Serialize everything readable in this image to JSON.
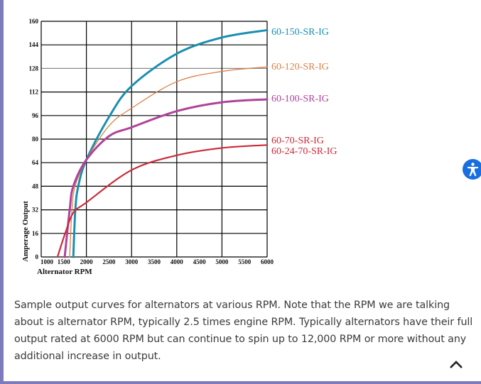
{
  "chart_data": {
    "type": "line",
    "xlabel": "Alternator RPM",
    "ylabel": "Amperage Output",
    "xlim": [
      1000,
      6000
    ],
    "ylim": [
      0,
      160
    ],
    "x_ticks": [
      "1000",
      "1500",
      "2000",
      "2500",
      "3000",
      "3500",
      "4000",
      "4500",
      "5000",
      "5500",
      "6000"
    ],
    "y_ticks": [
      "0",
      "16",
      "32",
      "48",
      "64",
      "80",
      "96",
      "112",
      "128",
      "144",
      "160"
    ],
    "grid": true,
    "legend_placement": "right, labels at line ends",
    "series": [
      {
        "name": "60-150-SR-IG",
        "color": "#1a8fb0",
        "width": 3,
        "x": [
          1710,
          1755,
          1820,
          2000,
          2500,
          3000,
          4000,
          5000,
          6000
        ],
        "y": [
          0,
          32,
          48,
          66,
          95,
          116,
          138,
          149,
          154
        ]
      },
      {
        "name": "60-120-SR-IG",
        "color": "#d9824a",
        "width": 1.3,
        "x": [
          1630,
          1680,
          1750,
          2000,
          2500,
          3000,
          4000,
          5000,
          6000
        ],
        "y": [
          0,
          32,
          48,
          66,
          89,
          101,
          119,
          126,
          129
        ]
      },
      {
        "name": "60-100-SR-IG",
        "color": "#b0429a",
        "width": 3,
        "x": [
          1520,
          1630,
          1710,
          2000,
          2500,
          3000,
          4000,
          5000,
          6000
        ],
        "y": [
          0,
          32,
          48,
          66,
          82,
          88,
          99,
          105,
          107
        ]
      },
      {
        "name": "60-70-SR-IG",
        "name2": "60-24-70-SR-IG",
        "color": "#cc2a38",
        "width": 2.2,
        "x": [
          1360,
          1530,
          1710,
          2000,
          3000,
          4000,
          5000,
          6000
        ],
        "y": [
          0,
          16,
          30,
          37,
          59,
          69,
          74,
          76
        ]
      }
    ]
  },
  "caption": "Sample output curves for alternators at various RPM.  Note that the RPM we are talking about is alternator RPM, typically 2.5 times engine RPM.  Typically alternators have their full output rated at 6000 RPM but can continue to spin up to 12,000 RPM or more without any additional increase in output.",
  "accessibility_button": {
    "icon": "accessibility-icon",
    "color": "#1a6fe0"
  },
  "scroll_top_button": {
    "icon": "chevron-up-icon"
  }
}
